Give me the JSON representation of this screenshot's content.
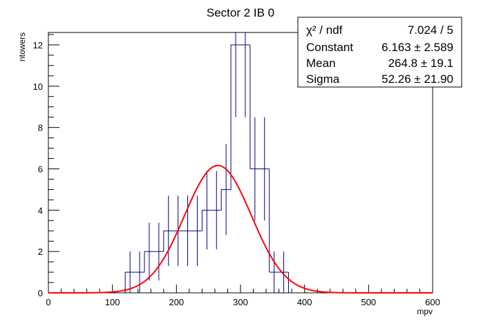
{
  "chart_data": {
    "type": "histogram",
    "title": "Sector 2 IB 0",
    "xlabel": "mpv",
    "ylabel": "ntowers",
    "xlim": [
      0,
      600
    ],
    "ylim": [
      0,
      12.6
    ],
    "x_ticks": [
      "0",
      "100",
      "200",
      "300",
      "400",
      "500",
      "600"
    ],
    "y_ticks": [
      "0",
      "2",
      "4",
      "6",
      "8",
      "10",
      "12"
    ],
    "bins": {
      "width": 15,
      "edges": [
        120,
        135,
        150,
        165,
        180,
        195,
        210,
        225,
        240,
        255,
        270,
        285,
        300,
        315,
        330,
        345,
        360
      ],
      "counts": [
        1,
        1,
        2,
        2,
        3,
        3,
        3,
        3,
        4,
        4,
        5,
        12,
        12,
        6,
        6,
        1,
        1
      ],
      "errors_up": [
        1.0,
        1.0,
        1.4,
        1.4,
        1.7,
        1.7,
        1.7,
        1.7,
        1.9,
        1.9,
        2.2,
        3.5,
        3.5,
        2.5,
        2.5,
        1.0,
        1.0
      ],
      "errors_down": [
        1.0,
        1.0,
        1.4,
        1.4,
        1.7,
        1.7,
        1.7,
        1.7,
        1.9,
        1.9,
        2.2,
        3.5,
        3.5,
        2.5,
        2.5,
        1.0,
        1.0
      ]
    },
    "series": [
      {
        "name": "histogram",
        "color": "#000080"
      },
      {
        "name": "gaus fit",
        "color": "#ff0000"
      }
    ],
    "fit": {
      "function": "gaus",
      "constant": 6.163,
      "mean": 264.8,
      "sigma": 52.26
    },
    "stats_box": {
      "rows": [
        {
          "label": "χ² / ndf",
          "value": "7.024 / 5"
        },
        {
          "label": "Constant",
          "value": "6.163 ± 2.589"
        },
        {
          "label": "Mean",
          "value": "264.8 ± 19.1"
        },
        {
          "label": "Sigma",
          "value": "52.26 ± 21.90"
        }
      ]
    }
  }
}
